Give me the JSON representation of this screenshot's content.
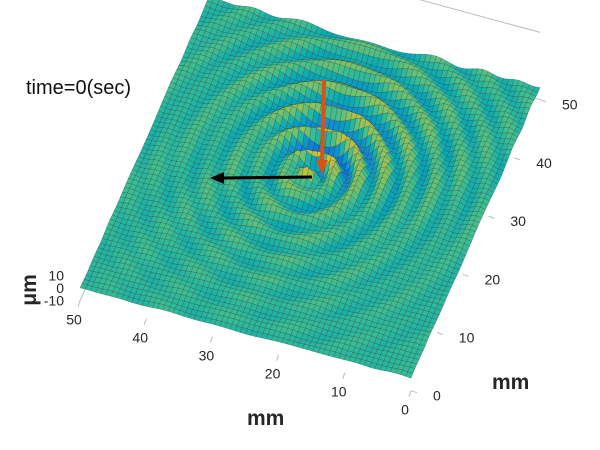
{
  "chart_data": {
    "type": "surface",
    "title": "time=0(sec)",
    "xlabel": "mm",
    "ylabel": "mm",
    "zlabel": "μm",
    "xlim": [
      0,
      50
    ],
    "ylim": [
      0,
      50
    ],
    "zlim": [
      -10,
      10
    ],
    "x_ticks": [
      "0",
      "10",
      "20",
      "30",
      "40",
      "50"
    ],
    "y_ticks": [
      "0",
      "10",
      "20",
      "30",
      "40",
      "50"
    ],
    "z_ticks": [
      "10",
      "0",
      "-10"
    ],
    "source_mm": [
      26,
      27
    ],
    "peak_height_um": 9,
    "wave_wavelength_mm": 3.6,
    "grid_on": true,
    "colormap": "parula",
    "annotations": [
      {
        "type": "arrow",
        "color": "#d95319",
        "direction": "down",
        "label": ""
      },
      {
        "type": "arrow",
        "color": "#000000",
        "direction": "left",
        "label": ""
      }
    ]
  }
}
